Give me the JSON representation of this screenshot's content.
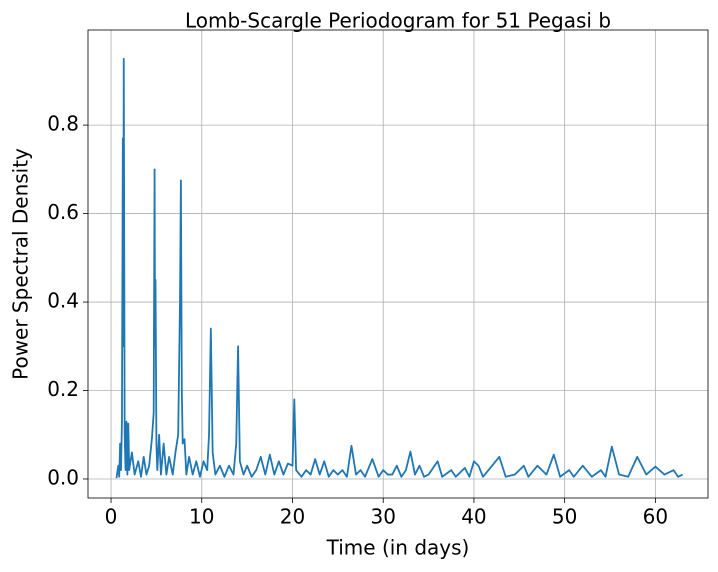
{
  "chart_data": {
    "type": "line",
    "title": "Lomb-Scargle Periodogram for 51 Pegasi b",
    "xlabel": "Time (in days)",
    "ylabel": "Power Spectral Density",
    "x": [
      0.6,
      0.8,
      0.9,
      1.0,
      1.1,
      1.2,
      1.3,
      1.35,
      1.4,
      1.45,
      1.5,
      1.6,
      1.7,
      1.8,
      1.9,
      2.0,
      2.3,
      2.6,
      3.0,
      3.3,
      3.6,
      3.9,
      4.2,
      4.5,
      4.7,
      4.8,
      4.85,
      4.9,
      5.0,
      5.1,
      5.3,
      5.5,
      5.8,
      6.1,
      6.4,
      6.8,
      7.1,
      7.4,
      7.6,
      7.7,
      7.8,
      7.9,
      8.1,
      8.3,
      8.6,
      9.0,
      9.4,
      9.8,
      10.2,
      10.6,
      10.8,
      11.0,
      11.2,
      11.5,
      12.0,
      12.5,
      13.0,
      13.5,
      13.8,
      14.0,
      14.2,
      14.6,
      15.0,
      15.5,
      16.0,
      16.5,
      17.0,
      17.5,
      18.0,
      18.5,
      19.0,
      19.5,
      20.0,
      20.2,
      20.4,
      21.0,
      21.5,
      22.0,
      22.5,
      23.0,
      23.5,
      24.0,
      24.5,
      25.0,
      25.5,
      26.0,
      26.5,
      27.0,
      27.5,
      28.0,
      28.8,
      29.5,
      30.0,
      30.5,
      31.0,
      31.5,
      32.0,
      32.5,
      33.0,
      33.5,
      34.0,
      34.5,
      35.0,
      36.0,
      36.5,
      37.5,
      38.0,
      39.0,
      39.5,
      40.0,
      40.5,
      41.0,
      42.0,
      42.8,
      43.5,
      44.5,
      45.5,
      46.0,
      47.0,
      48.0,
      48.8,
      49.5,
      50.5,
      51.0,
      52.0,
      53.0,
      54.0,
      54.5,
      55.2,
      56.0,
      57.0,
      58.0,
      59.0,
      60.0,
      61.0,
      62.0,
      62.5,
      63.0
    ],
    "series": [
      {
        "color": "#1f77b4",
        "values": [
          0.002,
          0.03,
          0.005,
          0.08,
          0.02,
          0.13,
          0.77,
          0.3,
          0.95,
          0.55,
          0.1,
          0.02,
          0.13,
          0.01,
          0.125,
          0.02,
          0.06,
          0.01,
          0.04,
          0.005,
          0.05,
          0.01,
          0.03,
          0.09,
          0.15,
          0.7,
          0.3,
          0.45,
          0.08,
          0.02,
          0.1,
          0.01,
          0.08,
          0.01,
          0.05,
          0.01,
          0.06,
          0.1,
          0.4,
          0.675,
          0.2,
          0.08,
          0.09,
          0.01,
          0.05,
          0.01,
          0.04,
          0.005,
          0.04,
          0.02,
          0.1,
          0.34,
          0.06,
          0.01,
          0.03,
          0.005,
          0.03,
          0.01,
          0.08,
          0.3,
          0.04,
          0.01,
          0.03,
          0.005,
          0.02,
          0.05,
          0.01,
          0.055,
          0.01,
          0.04,
          0.01,
          0.035,
          0.03,
          0.18,
          0.02,
          0.005,
          0.02,
          0.01,
          0.045,
          0.01,
          0.04,
          0.005,
          0.02,
          0.01,
          0.02,
          0.005,
          0.075,
          0.01,
          0.02,
          0.005,
          0.045,
          0.005,
          0.02,
          0.01,
          0.01,
          0.03,
          0.005,
          0.02,
          0.062,
          0.01,
          0.03,
          0.005,
          0.01,
          0.04,
          0.005,
          0.02,
          0.005,
          0.025,
          0.005,
          0.04,
          0.03,
          0.005,
          0.03,
          0.05,
          0.005,
          0.01,
          0.03,
          0.005,
          0.03,
          0.01,
          0.055,
          0.005,
          0.02,
          0.005,
          0.03,
          0.005,
          0.02,
          0.005,
          0.073,
          0.01,
          0.005,
          0.05,
          0.01,
          0.028,
          0.01,
          0.02,
          0.005,
          0.01
        ]
      }
    ],
    "xlim": [
      -2.54,
      65.8
    ],
    "ylim": [
      -0.043,
      1.015
    ],
    "xticks": [
      0,
      10,
      20,
      30,
      40,
      50,
      60
    ],
    "yticks": [
      {
        "value": 0,
        "label": "0.0"
      },
      0.2,
      0.4,
      0.6,
      0.8
    ],
    "grid": true
  }
}
